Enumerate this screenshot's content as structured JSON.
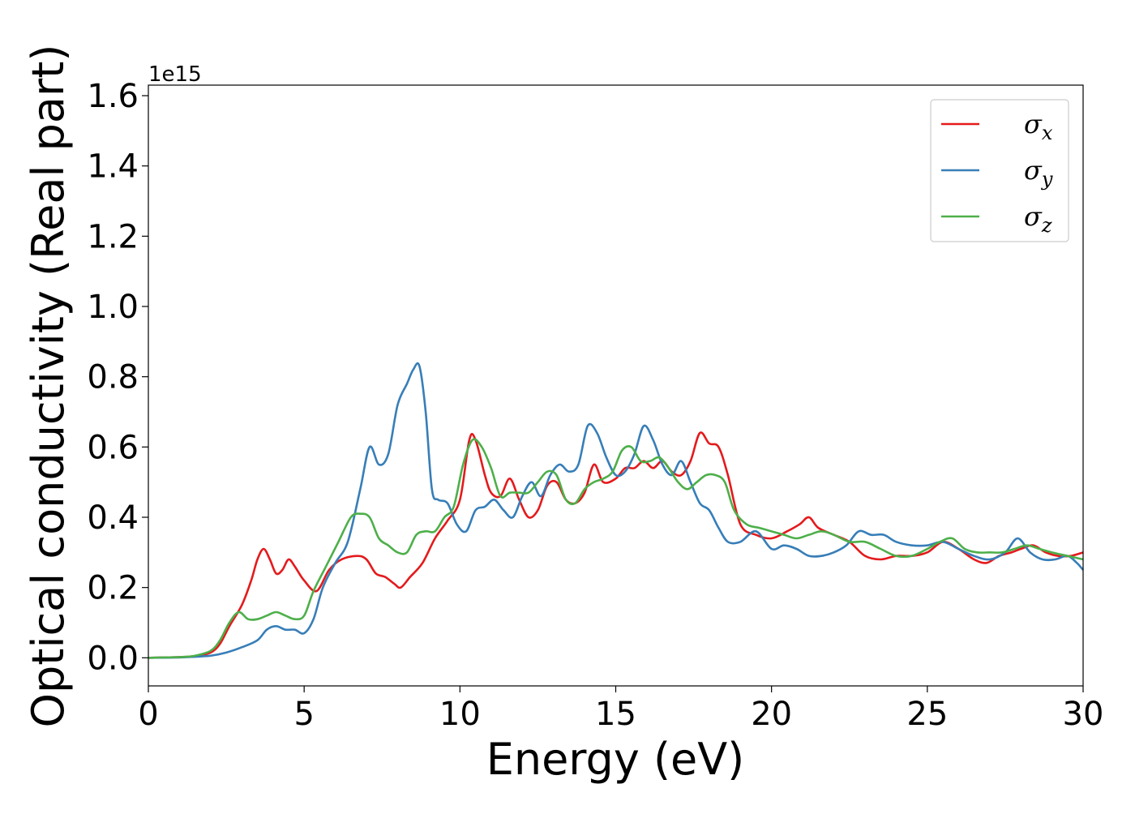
{
  "chart_data": {
    "type": "line",
    "xlabel": "Energy (eV)",
    "ylabel": "Optical conductivity (Real part)",
    "y_offset_label": "1e15",
    "y_scale_factor": 1000000000000000.0,
    "xlim": [
      0,
      30
    ],
    "ylim": [
      -0.08,
      1.63
    ],
    "xticks": [
      0,
      5,
      10,
      15,
      20,
      25,
      30
    ],
    "xtick_labels": [
      "0",
      "5",
      "10",
      "15",
      "20",
      "25",
      "30"
    ],
    "yticks": [
      0.0,
      0.2,
      0.4,
      0.6,
      0.8,
      1.0,
      1.2,
      1.4,
      1.6
    ],
    "ytick_labels": [
      "0.0",
      "0.2",
      "0.4",
      "0.6",
      "0.8",
      "1.0",
      "1.2",
      "1.4",
      "1.6"
    ],
    "grid": false,
    "legend_position": "top-right",
    "series": [
      {
        "name": "σx",
        "legend_base": "σ",
        "legend_sub": "x",
        "color": "#e41a1c",
        "x": [
          0,
          1,
          1.5,
          2,
          2.3,
          2.6,
          3.0,
          3.3,
          3.5,
          3.7,
          3.9,
          4.1,
          4.3,
          4.5,
          4.7,
          5.0,
          5.4,
          5.8,
          6.2,
          6.7,
          7.0,
          7.3,
          7.6,
          7.9,
          8.1,
          8.4,
          8.8,
          9.2,
          9.6,
          10.0,
          10.3,
          10.5,
          10.8,
          11.0,
          11.3,
          11.6,
          11.9,
          12.2,
          12.5,
          12.8,
          13.1,
          13.4,
          13.7,
          14.0,
          14.3,
          14.6,
          15.0,
          15.3,
          15.6,
          15.9,
          16.2,
          16.5,
          16.8,
          17.1,
          17.4,
          17.7,
          18.0,
          18.3,
          18.6,
          19.0,
          19.5,
          20.0,
          20.5,
          20.9,
          21.2,
          21.5,
          22.0,
          22.5,
          23.0,
          23.5,
          24.0,
          24.5,
          25.0,
          25.5,
          26.0,
          26.5,
          26.9,
          27.3,
          27.7,
          28.0,
          28.4,
          28.8,
          29.2,
          29.6,
          30.0
        ],
        "y": [
          0.0,
          0.002,
          0.005,
          0.015,
          0.04,
          0.09,
          0.15,
          0.22,
          0.28,
          0.31,
          0.28,
          0.24,
          0.25,
          0.28,
          0.26,
          0.22,
          0.19,
          0.25,
          0.28,
          0.29,
          0.28,
          0.24,
          0.23,
          0.21,
          0.2,
          0.23,
          0.27,
          0.34,
          0.39,
          0.45,
          0.62,
          0.62,
          0.52,
          0.47,
          0.46,
          0.51,
          0.45,
          0.4,
          0.42,
          0.49,
          0.5,
          0.45,
          0.44,
          0.47,
          0.55,
          0.5,
          0.51,
          0.54,
          0.54,
          0.56,
          0.54,
          0.56,
          0.53,
          0.52,
          0.56,
          0.64,
          0.61,
          0.6,
          0.52,
          0.38,
          0.35,
          0.34,
          0.36,
          0.38,
          0.4,
          0.37,
          0.35,
          0.33,
          0.29,
          0.28,
          0.29,
          0.29,
          0.3,
          0.33,
          0.31,
          0.28,
          0.27,
          0.29,
          0.3,
          0.31,
          0.32,
          0.3,
          0.29,
          0.29,
          0.3
        ]
      },
      {
        "name": "σy",
        "legend_base": "σ",
        "legend_sub": "y",
        "color": "#377eb8",
        "x": [
          0,
          1,
          1.5,
          2,
          2.5,
          3.0,
          3.5,
          3.8,
          4.1,
          4.4,
          4.7,
          5.0,
          5.3,
          5.6,
          6.0,
          6.4,
          6.8,
          7.1,
          7.4,
          7.7,
          8.0,
          8.3,
          8.5,
          8.7,
          8.9,
          9.1,
          9.3,
          9.6,
          9.9,
          10.2,
          10.5,
          10.8,
          11.1,
          11.4,
          11.7,
          12.0,
          12.3,
          12.6,
          12.9,
          13.2,
          13.5,
          13.8,
          14.1,
          14.4,
          14.7,
          15.0,
          15.3,
          15.6,
          15.9,
          16.2,
          16.5,
          16.8,
          17.1,
          17.4,
          17.7,
          18.0,
          18.3,
          18.6,
          19.0,
          19.5,
          20.0,
          20.4,
          20.8,
          21.2,
          21.6,
          22.0,
          22.4,
          22.8,
          23.2,
          23.6,
          24.0,
          24.5,
          25.0,
          25.5,
          26.0,
          26.5,
          27.0,
          27.5,
          27.9,
          28.3,
          28.7,
          29.1,
          29.5,
          29.8,
          30.0
        ],
        "y": [
          0.0,
          0.001,
          0.003,
          0.006,
          0.015,
          0.03,
          0.05,
          0.08,
          0.09,
          0.08,
          0.08,
          0.07,
          0.11,
          0.2,
          0.27,
          0.33,
          0.48,
          0.6,
          0.55,
          0.58,
          0.72,
          0.78,
          0.82,
          0.83,
          0.7,
          0.48,
          0.45,
          0.44,
          0.38,
          0.36,
          0.42,
          0.43,
          0.45,
          0.42,
          0.4,
          0.46,
          0.5,
          0.46,
          0.52,
          0.55,
          0.53,
          0.55,
          0.66,
          0.64,
          0.57,
          0.52,
          0.53,
          0.58,
          0.66,
          0.62,
          0.55,
          0.52,
          0.56,
          0.5,
          0.44,
          0.42,
          0.37,
          0.33,
          0.33,
          0.36,
          0.31,
          0.32,
          0.31,
          0.29,
          0.29,
          0.3,
          0.32,
          0.36,
          0.35,
          0.35,
          0.33,
          0.32,
          0.32,
          0.33,
          0.31,
          0.29,
          0.28,
          0.3,
          0.34,
          0.3,
          0.28,
          0.28,
          0.29,
          0.27,
          0.25
        ]
      },
      {
        "name": "σz",
        "legend_base": "σ",
        "legend_sub": "z",
        "color": "#4daf4a",
        "x": [
          0,
          1,
          1.5,
          2,
          2.3,
          2.6,
          2.9,
          3.2,
          3.5,
          3.8,
          4.1,
          4.4,
          4.7,
          5.0,
          5.3,
          5.7,
          6.1,
          6.5,
          6.8,
          7.1,
          7.4,
          7.7,
          8.0,
          8.3,
          8.6,
          8.9,
          9.2,
          9.5,
          9.8,
          10.1,
          10.4,
          10.7,
          11.0,
          11.3,
          11.6,
          11.9,
          12.2,
          12.5,
          12.8,
          13.1,
          13.4,
          13.7,
          14.0,
          14.3,
          14.6,
          14.9,
          15.2,
          15.5,
          15.8,
          16.1,
          16.4,
          16.7,
          17.0,
          17.3,
          17.6,
          17.9,
          18.2,
          18.5,
          18.8,
          19.2,
          19.6,
          20.0,
          20.4,
          20.8,
          21.2,
          21.6,
          22.0,
          22.5,
          23.0,
          23.5,
          24.0,
          24.5,
          25.0,
          25.4,
          25.8,
          26.2,
          26.6,
          27.0,
          27.4,
          27.8,
          28.2,
          28.6,
          29.0,
          29.5,
          30.0
        ],
        "y": [
          0.0,
          0.002,
          0.006,
          0.02,
          0.05,
          0.1,
          0.13,
          0.11,
          0.11,
          0.12,
          0.13,
          0.12,
          0.11,
          0.12,
          0.19,
          0.26,
          0.33,
          0.4,
          0.41,
          0.4,
          0.34,
          0.32,
          0.3,
          0.3,
          0.35,
          0.36,
          0.36,
          0.4,
          0.43,
          0.55,
          0.62,
          0.6,
          0.54,
          0.46,
          0.47,
          0.47,
          0.47,
          0.5,
          0.53,
          0.52,
          0.45,
          0.44,
          0.48,
          0.5,
          0.51,
          0.53,
          0.59,
          0.6,
          0.56,
          0.56,
          0.57,
          0.54,
          0.5,
          0.48,
          0.5,
          0.52,
          0.52,
          0.5,
          0.42,
          0.38,
          0.37,
          0.36,
          0.35,
          0.34,
          0.35,
          0.36,
          0.35,
          0.33,
          0.33,
          0.31,
          0.29,
          0.29,
          0.31,
          0.33,
          0.34,
          0.31,
          0.3,
          0.3,
          0.3,
          0.31,
          0.32,
          0.31,
          0.3,
          0.29,
          0.28
        ]
      }
    ]
  }
}
